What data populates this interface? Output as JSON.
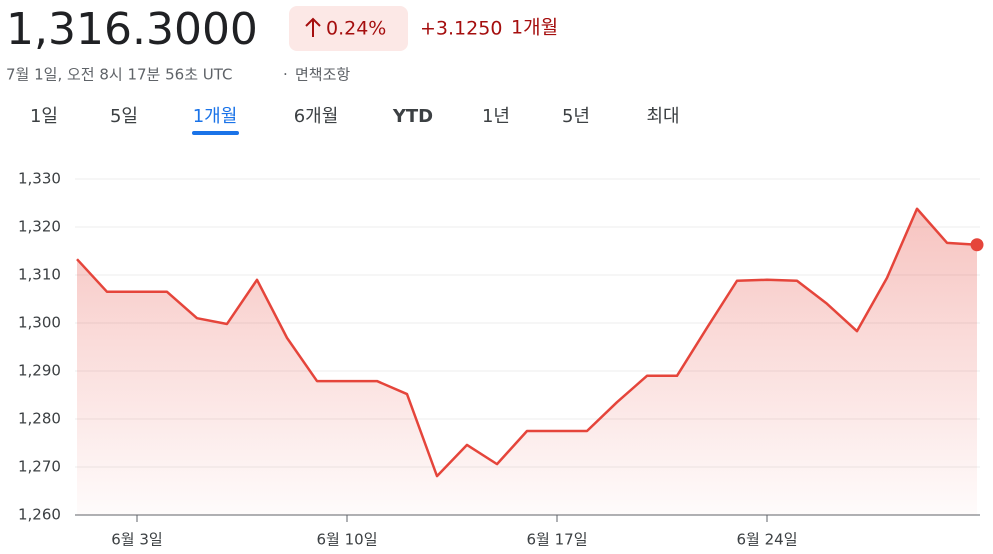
{
  "header": {
    "price": "1,316.3000",
    "change_percent": "0.24%",
    "change_abs": "+3.1250",
    "period": "1개월",
    "timestamp": "7월 1일, 오전 8시 17분 56초 UTC",
    "disclaimer": "면책조항"
  },
  "tabs": [
    "1일",
    "5일",
    "1개월",
    "6개월",
    "YTD",
    "1년",
    "5년",
    "최대"
  ],
  "chart_data": {
    "type": "area",
    "categories": [
      null,
      null,
      "6월 3일",
      null,
      null,
      null,
      null,
      null,
      null,
      "6월 10일",
      null,
      null,
      null,
      null,
      null,
      null,
      "6월 17일",
      null,
      null,
      null,
      null,
      null,
      null,
      "6월 24일",
      null,
      null,
      null,
      null,
      null,
      null,
      null
    ],
    "values": [
      1313.3,
      1306.5,
      1306.5,
      1306.5,
      1301.0,
      1299.8,
      1309.0,
      1296.9,
      1287.9,
      1287.9,
      1287.9,
      1285.2,
      1268.1,
      1274.6,
      1270.6,
      1277.5,
      1277.5,
      1277.5,
      1283.5,
      1289.0,
      1289.0,
      1299.0,
      1308.8,
      1309.0,
      1308.8,
      1304.0,
      1298.3,
      1309.4,
      1323.8,
      1316.7,
      1316.3
    ],
    "color": "#e5453b",
    "ylim": [
      1260,
      1330
    ],
    "yticks": [
      {
        "value": 1260,
        "label": "1,260"
      },
      {
        "value": 1270,
        "label": "1,270"
      },
      {
        "value": 1280,
        "label": "1,280"
      },
      {
        "value": 1290,
        "label": "1,290"
      },
      {
        "value": 1300,
        "label": "1,300"
      },
      {
        "value": 1310,
        "label": "1,310"
      },
      {
        "value": 1320,
        "label": "1,320"
      },
      {
        "value": 1330,
        "label": "1,330"
      }
    ],
    "grid": true
  }
}
